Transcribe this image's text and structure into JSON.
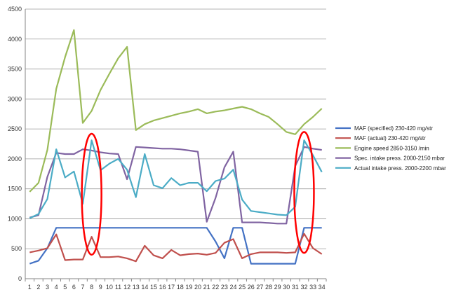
{
  "chart_data": {
    "type": "line",
    "categories": [
      "1",
      "2",
      "3",
      "4",
      "5",
      "6",
      "7",
      "8",
      "9",
      "10",
      "11",
      "12",
      "13",
      "14",
      "15",
      "16",
      "17",
      "18",
      "19",
      "20",
      "21",
      "22",
      "23",
      "24",
      "25",
      "26",
      "27",
      "28",
      "29",
      "30",
      "31",
      "32",
      "33",
      "34"
    ],
    "ylim": [
      0,
      4500
    ],
    "yticks": [
      0,
      500,
      1000,
      1500,
      2000,
      2500,
      3000,
      3500,
      4000,
      4500
    ],
    "grid": true,
    "legend_position": "right",
    "series": [
      {
        "name": "MAF (specified) 230-420  mg/str",
        "color": "#4472C4",
        "values": [
          250,
          300,
          510,
          850,
          850,
          850,
          850,
          850,
          850,
          850,
          850,
          850,
          850,
          850,
          850,
          850,
          850,
          850,
          850,
          850,
          850,
          620,
          340,
          850,
          850,
          250,
          250,
          250,
          250,
          250,
          250,
          850,
          850,
          850
        ]
      },
      {
        "name": "MAF (actual) 230-420  mg/str",
        "color": "#C0504D",
        "values": [
          440,
          470,
          510,
          740,
          310,
          320,
          320,
          700,
          360,
          360,
          370,
          340,
          290,
          550,
          390,
          340,
          480,
          390,
          410,
          420,
          400,
          430,
          600,
          660,
          340,
          410,
          440,
          440,
          440,
          430,
          440,
          750,
          510,
          410
        ]
      },
      {
        "name": "Engine speed 2850-3150  /min",
        "color": "#9BBB59",
        "values": [
          1450,
          1600,
          2150,
          3170,
          3700,
          4150,
          2600,
          2800,
          3150,
          3420,
          3680,
          3870,
          2480,
          2580,
          2640,
          2680,
          2720,
          2760,
          2790,
          2830,
          2760,
          2790,
          2810,
          2840,
          2870,
          2830,
          2760,
          2700,
          2580,
          2450,
          2410,
          2580,
          2700,
          2840
        ]
      },
      {
        "name": "Spec. intake press. 2000-2150  mbar",
        "color": "#8064A2",
        "values": [
          1020,
          1060,
          1700,
          2100,
          2080,
          2080,
          2160,
          2140,
          2110,
          2090,
          2080,
          1660,
          2200,
          2190,
          2180,
          2170,
          2170,
          2160,
          2140,
          2120,
          950,
          1350,
          1860,
          2120,
          940,
          940,
          940,
          930,
          920,
          920,
          1880,
          2200,
          2170,
          2150
        ]
      },
      {
        "name": "Actual intake press. 2000-2200  mbar",
        "color": "#4BACC6",
        "values": [
          1010,
          1080,
          1330,
          2160,
          1690,
          1790,
          1250,
          2310,
          1810,
          1920,
          2000,
          1820,
          1360,
          2080,
          1560,
          1510,
          1680,
          1560,
          1600,
          1600,
          1460,
          1630,
          1670,
          1820,
          1320,
          1130,
          1110,
          1090,
          1070,
          1060,
          1200,
          2310,
          2060,
          1780
        ]
      }
    ],
    "annotations": [
      {
        "type": "ellipse",
        "color": "#FF0000",
        "center_category": "8",
        "y_range": [
          400,
          2420
        ]
      },
      {
        "type": "ellipse",
        "color": "#FF0000",
        "center_category": "32",
        "y_range": [
          430,
          2450
        ]
      }
    ]
  }
}
